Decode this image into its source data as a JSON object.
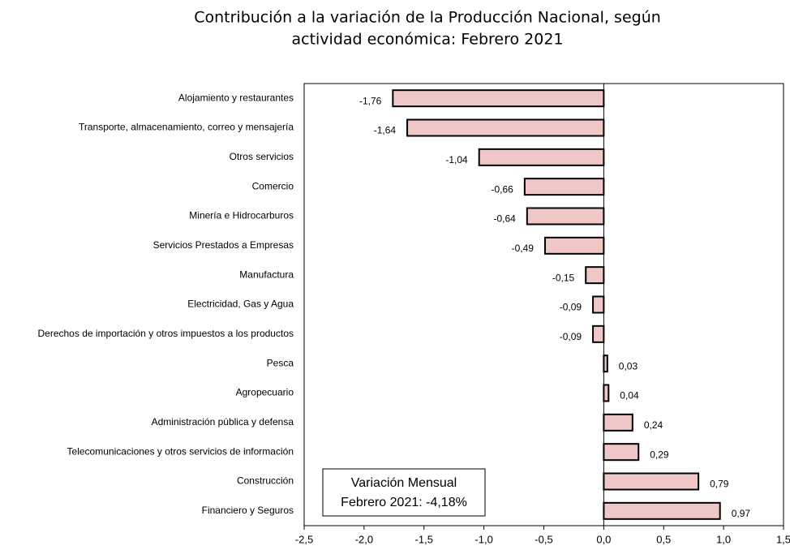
{
  "chart_data": {
    "type": "bar",
    "orientation": "horizontal",
    "title": [
      "Contribución a la variación de la Producción Nacional, según",
      "actividad económica: Febrero 2021"
    ],
    "categories": [
      "Alojamiento y restaurantes",
      "Transporte, almacenamiento, correo y mensajería",
      "Otros servicios",
      "Comercio",
      "Minería e Hidrocarburos",
      "Servicios Prestados a Empresas",
      "Manufactura",
      "Electricidad, Gas y Agua",
      "Derechos de importación y otros impuestos a los productos",
      "Pesca",
      "Agropecuario",
      "Administración pública y defensa",
      "Telecomunicaciones y otros servicios de información",
      "Construcción",
      "Financiero y Seguros"
    ],
    "values": [
      -1.76,
      -1.64,
      -1.04,
      -0.66,
      -0.64,
      -0.49,
      -0.15,
      -0.09,
      -0.09,
      0.03,
      0.04,
      0.24,
      0.29,
      0.79,
      0.97
    ],
    "value_labels": [
      "-1,76",
      "-1,64",
      "-1,04",
      "-0,66",
      "-0,64",
      "-0,49",
      "-0,15",
      "-0,09",
      "-0,09",
      "0,03",
      "0,04",
      "0,24",
      "0,29",
      "0,79",
      "0,97"
    ],
    "color": "#efc7c7",
    "xlim": [
      -2.5,
      1.5
    ],
    "xticks": [
      {
        "value": -2.5,
        "label": "-2,5"
      },
      {
        "value": -2.0,
        "label": "-2,0"
      },
      {
        "value": -1.5,
        "label": "-1,5"
      },
      {
        "value": -1.0,
        "label": "-1,0"
      },
      {
        "value": -0.5,
        "label": "-0,5"
      },
      {
        "value": 0.0,
        "label": "0,0"
      },
      {
        "value": 0.5,
        "label": "0,5"
      },
      {
        "value": 1.0,
        "label": "1,0"
      },
      {
        "value": 1.5,
        "label": "1,5"
      }
    ],
    "annotation": [
      "Variación Mensual",
      "Febrero 2021: -4,18%"
    ]
  }
}
